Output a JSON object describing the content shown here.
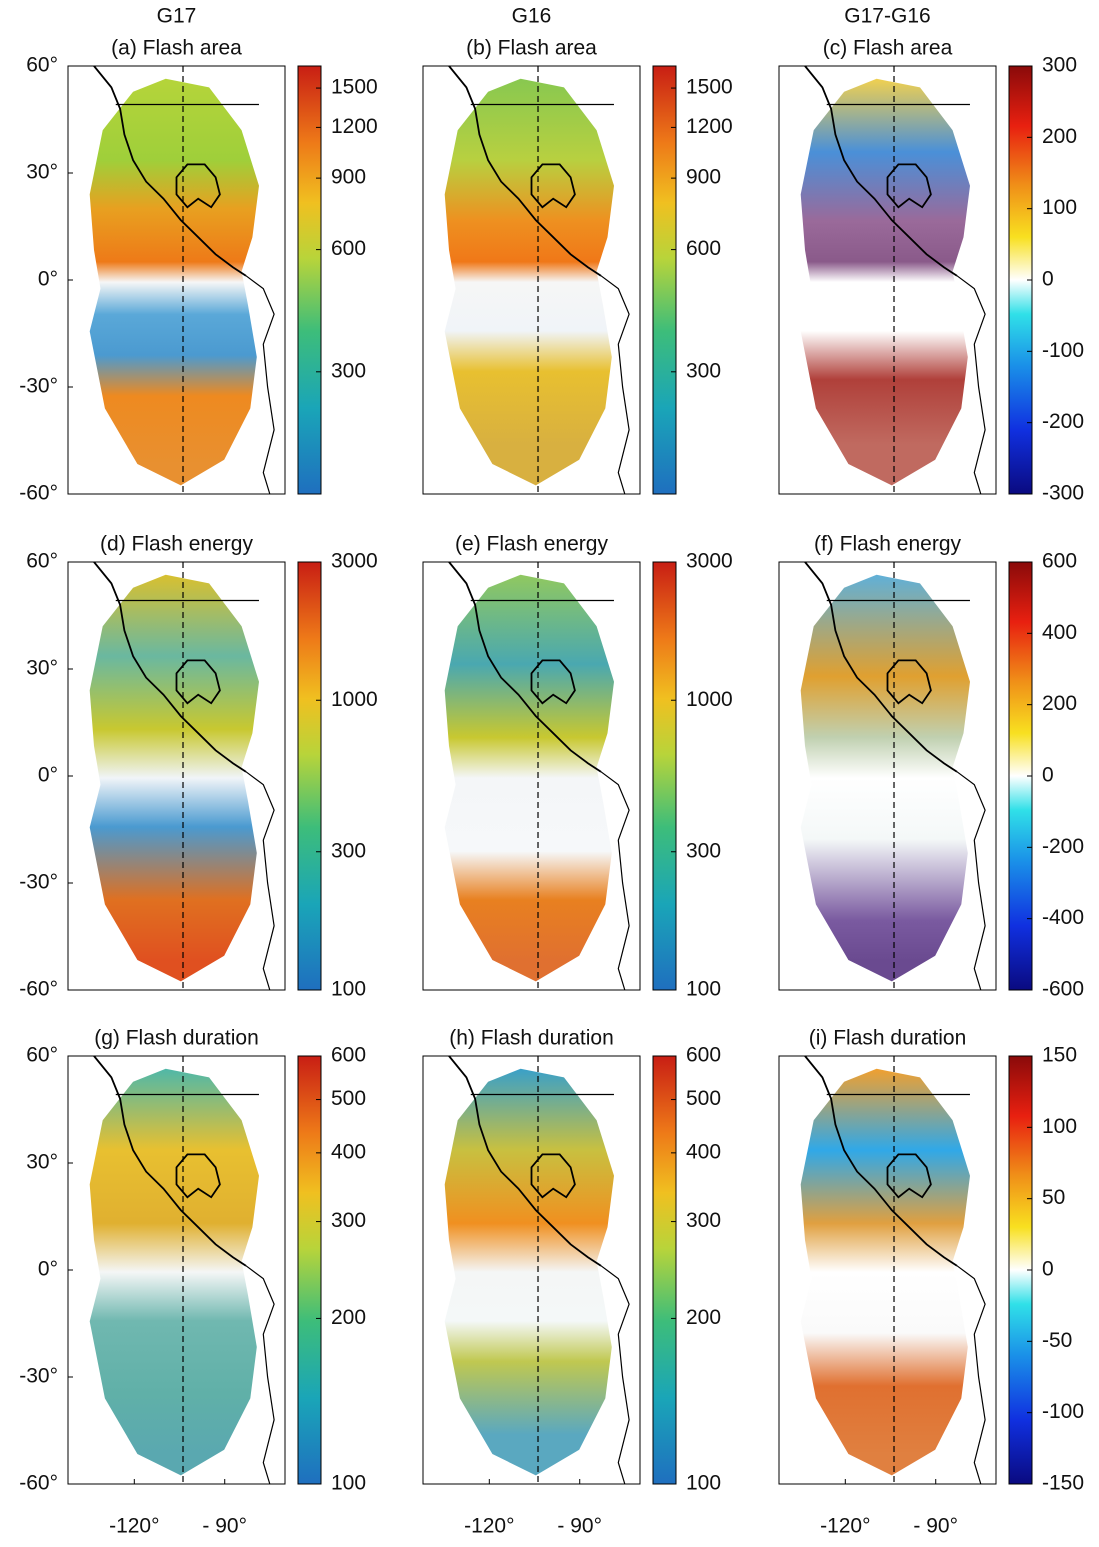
{
  "column_titles": [
    "G17",
    "G16",
    "G17-G16"
  ],
  "chart_data": [
    {
      "type": "map",
      "title": "(a) Flash area",
      "ylim": [
        -60,
        60
      ],
      "yticks": [
        {
          "value": 60,
          "label": "60°"
        },
        {
          "value": 30,
          "label": "30°"
        },
        {
          "value": 0,
          "label": "0°"
        },
        {
          "value": -30,
          "label": "-30°"
        },
        {
          "value": -60,
          "label": "-60°"
        }
      ],
      "colorbar": {
        "lim": [
          150,
          1700
        ],
        "ticks": [
          300,
          600,
          900,
          1200,
          1500
        ],
        "scale": "log",
        "colormap": "sequential"
      }
    },
    {
      "type": "map",
      "title": "(b) Flash area",
      "colorbar": {
        "lim": [
          150,
          1700
        ],
        "ticks": [
          300,
          600,
          900,
          1200,
          1500
        ],
        "scale": "log",
        "colormap": "sequential"
      }
    },
    {
      "type": "map",
      "title": "(c) Flash area",
      "colorbar": {
        "lim": [
          -300,
          300
        ],
        "ticks": [
          300,
          200,
          100,
          0,
          -100,
          -200,
          -300
        ],
        "scale": "linear",
        "colormap": "diverging"
      }
    },
    {
      "type": "map",
      "title": "(d) Flash energy",
      "ylim": [
        -60,
        60
      ],
      "yticks": [
        {
          "value": 60,
          "label": "60°"
        },
        {
          "value": 30,
          "label": "30°"
        },
        {
          "value": 0,
          "label": "0°"
        },
        {
          "value": -30,
          "label": "-30°"
        },
        {
          "value": -60,
          "label": "-60°"
        }
      ],
      "colorbar": {
        "lim": [
          100,
          3000
        ],
        "ticks": [
          100,
          300,
          1000,
          3000
        ],
        "scale": "log",
        "colormap": "sequential"
      }
    },
    {
      "type": "map",
      "title": "(e) Flash energy",
      "colorbar": {
        "lim": [
          100,
          3000
        ],
        "ticks": [
          100,
          300,
          1000,
          3000
        ],
        "scale": "log",
        "colormap": "sequential"
      }
    },
    {
      "type": "map",
      "title": "(f) Flash energy",
      "colorbar": {
        "lim": [
          -600,
          600
        ],
        "ticks": [
          600,
          400,
          200,
          0,
          -200,
          -400,
          -600
        ],
        "scale": "linear",
        "colormap": "diverging"
      }
    },
    {
      "type": "map",
      "title": "(g) Flash duration",
      "ylim": [
        -60,
        60
      ],
      "yticks": [
        {
          "value": 60,
          "label": "60°"
        },
        {
          "value": 30,
          "label": "30°"
        },
        {
          "value": 0,
          "label": "0°"
        },
        {
          "value": -30,
          "label": "-30°"
        },
        {
          "value": -60,
          "label": "-60°"
        }
      ],
      "xlim": [
        -142,
        -70
      ],
      "xticks": [
        {
          "value": -120,
          "label": "-120°"
        },
        {
          "value": -90,
          "label": "- 90°"
        }
      ],
      "colorbar": {
        "lim": [
          100,
          600
        ],
        "ticks": [
          100,
          200,
          300,
          400,
          500,
          600
        ],
        "scale": "log",
        "colormap": "sequential"
      }
    },
    {
      "type": "map",
      "title": "(h) Flash duration",
      "xlim": [
        -142,
        -70
      ],
      "xticks": [
        {
          "value": -120,
          "label": "-120°"
        },
        {
          "value": -90,
          "label": "- 90°"
        }
      ],
      "colorbar": {
        "lim": [
          100,
          600
        ],
        "ticks": [
          100,
          200,
          300,
          400,
          500,
          600
        ],
        "scale": "log",
        "colormap": "sequential"
      }
    },
    {
      "type": "map",
      "title": "(i) Flash duration",
      "xlim": [
        -142,
        -70
      ],
      "xticks": [
        {
          "value": -120,
          "label": "-120°"
        },
        {
          "value": -90,
          "label": "- 90°"
        }
      ],
      "colorbar": {
        "lim": [
          -150,
          150
        ],
        "ticks": [
          150,
          100,
          50,
          0,
          -50,
          -100,
          -150
        ],
        "scale": "linear",
        "colormap": "diverging"
      }
    }
  ]
}
